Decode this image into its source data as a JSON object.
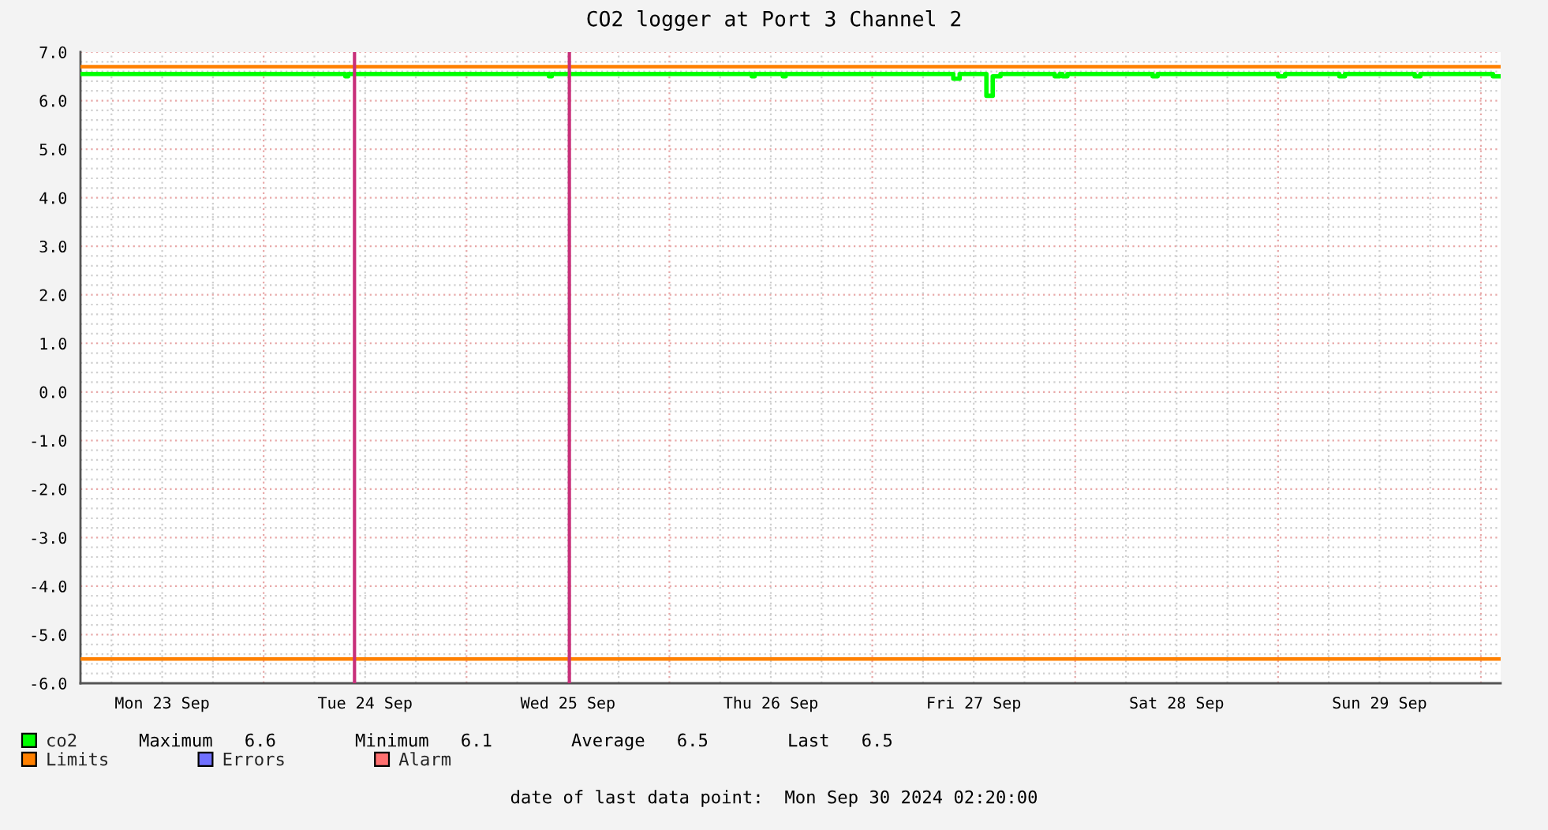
{
  "chart_data": {
    "type": "step",
    "title": "CO2 logger at Port 3 Channel 2",
    "xlim": [
      "2024-09-23T02:20",
      "2024-09-30T02:20"
    ],
    "xticks": [
      {
        "value": "2024-09-23T12:00",
        "label": "Mon 23 Sep"
      },
      {
        "value": "2024-09-24T00:00",
        "label": null
      },
      {
        "value": "2024-09-24T12:00",
        "label": "Tue 24 Sep"
      },
      {
        "value": "2024-09-25T00:00",
        "label": null
      },
      {
        "value": "2024-09-25T12:00",
        "label": "Wed 25 Sep"
      },
      {
        "value": "2024-09-26T00:00",
        "label": null
      },
      {
        "value": "2024-09-26T12:00",
        "label": "Thu 26 Sep"
      },
      {
        "value": "2024-09-27T00:00",
        "label": null
      },
      {
        "value": "2024-09-27T12:00",
        "label": "Fri 27 Sep"
      },
      {
        "value": "2024-09-28T00:00",
        "label": null
      },
      {
        "value": "2024-09-28T12:00",
        "label": "Sat 28 Sep"
      },
      {
        "value": "2024-09-29T00:00",
        "label": null
      },
      {
        "value": "2024-09-29T12:00",
        "label": "Sun 29 Sep"
      },
      {
        "value": "2024-09-30T00:00",
        "label": null
      }
    ],
    "ylim": [
      -6,
      7
    ],
    "yticks": [
      {
        "value": -6,
        "label": "-6.0"
      },
      {
        "value": -5,
        "label": "-5.0"
      },
      {
        "value": -4,
        "label": "-4.0"
      },
      {
        "value": -3,
        "label": "-3.0"
      },
      {
        "value": -2,
        "label": "-2.0"
      },
      {
        "value": -1,
        "label": "-1.0"
      },
      {
        "value": 0,
        "label": "0.0"
      },
      {
        "value": 1,
        "label": "1.0"
      },
      {
        "value": 2,
        "label": "2.0"
      },
      {
        "value": 3,
        "label": "3.0"
      },
      {
        "value": 4,
        "label": "4.0"
      },
      {
        "value": 5,
        "label": "5.0"
      },
      {
        "value": 6,
        "label": "6.0"
      },
      {
        "value": 7,
        "label": "7.0"
      }
    ],
    "series": [
      {
        "name": "co2",
        "color": "#00ff00",
        "x": [
          "2024-09-23T02:20",
          "2024-09-24T09:40",
          "2024-09-24T10:00",
          "2024-09-25T09:45",
          "2024-09-25T10:05",
          "2024-09-26T09:45",
          "2024-09-26T10:05",
          "2024-09-26T13:25",
          "2024-09-26T13:45",
          "2024-09-27T09:35",
          "2024-09-27T10:20",
          "2024-09-27T13:30",
          "2024-09-27T14:15",
          "2024-09-27T15:10",
          "2024-09-27T21:35",
          "2024-09-27T22:10",
          "2024-09-27T22:30",
          "2024-09-27T23:05",
          "2024-09-28T09:10",
          "2024-09-28T09:45",
          "2024-09-29T00:00",
          "2024-09-29T00:50",
          "2024-09-29T07:15",
          "2024-09-29T07:55",
          "2024-09-29T16:10",
          "2024-09-29T16:50",
          "2024-09-30T01:25",
          "2024-09-30T02:20"
        ],
        "values": [
          6.55,
          6.5,
          6.55,
          6.5,
          6.55,
          6.5,
          6.55,
          6.5,
          6.55,
          6.45,
          6.55,
          6.1,
          6.5,
          6.55,
          6.5,
          6.55,
          6.5,
          6.55,
          6.5,
          6.55,
          6.5,
          6.55,
          6.5,
          6.55,
          6.5,
          6.55,
          6.5,
          6.5
        ]
      },
      {
        "name": "Errors",
        "color": "#7070ff"
      },
      {
        "name": "Alarm",
        "color": "#ff7070"
      }
    ],
    "ref_lines": [
      {
        "axis": "y",
        "value": 6.7,
        "label": "Limits",
        "color": "#ff8000"
      },
      {
        "axis": "y",
        "value": -5.5,
        "color": "#ff8000"
      },
      {
        "axis": "x",
        "value": "2024-09-24T10:45",
        "color": "#c8307a"
      },
      {
        "axis": "x",
        "value": "2024-09-25T12:10",
        "color": "#c8307a"
      }
    ],
    "annotations": [
      "Maximum   6.6",
      "Minimum   6.1",
      "Average   6.5",
      "Last   6.5",
      "date of last data point:  Mon Sep 30 2024 02:20:00"
    ],
    "grid": true,
    "legend": "bottom",
    "line_style": "solid",
    "marker": "none"
  }
}
